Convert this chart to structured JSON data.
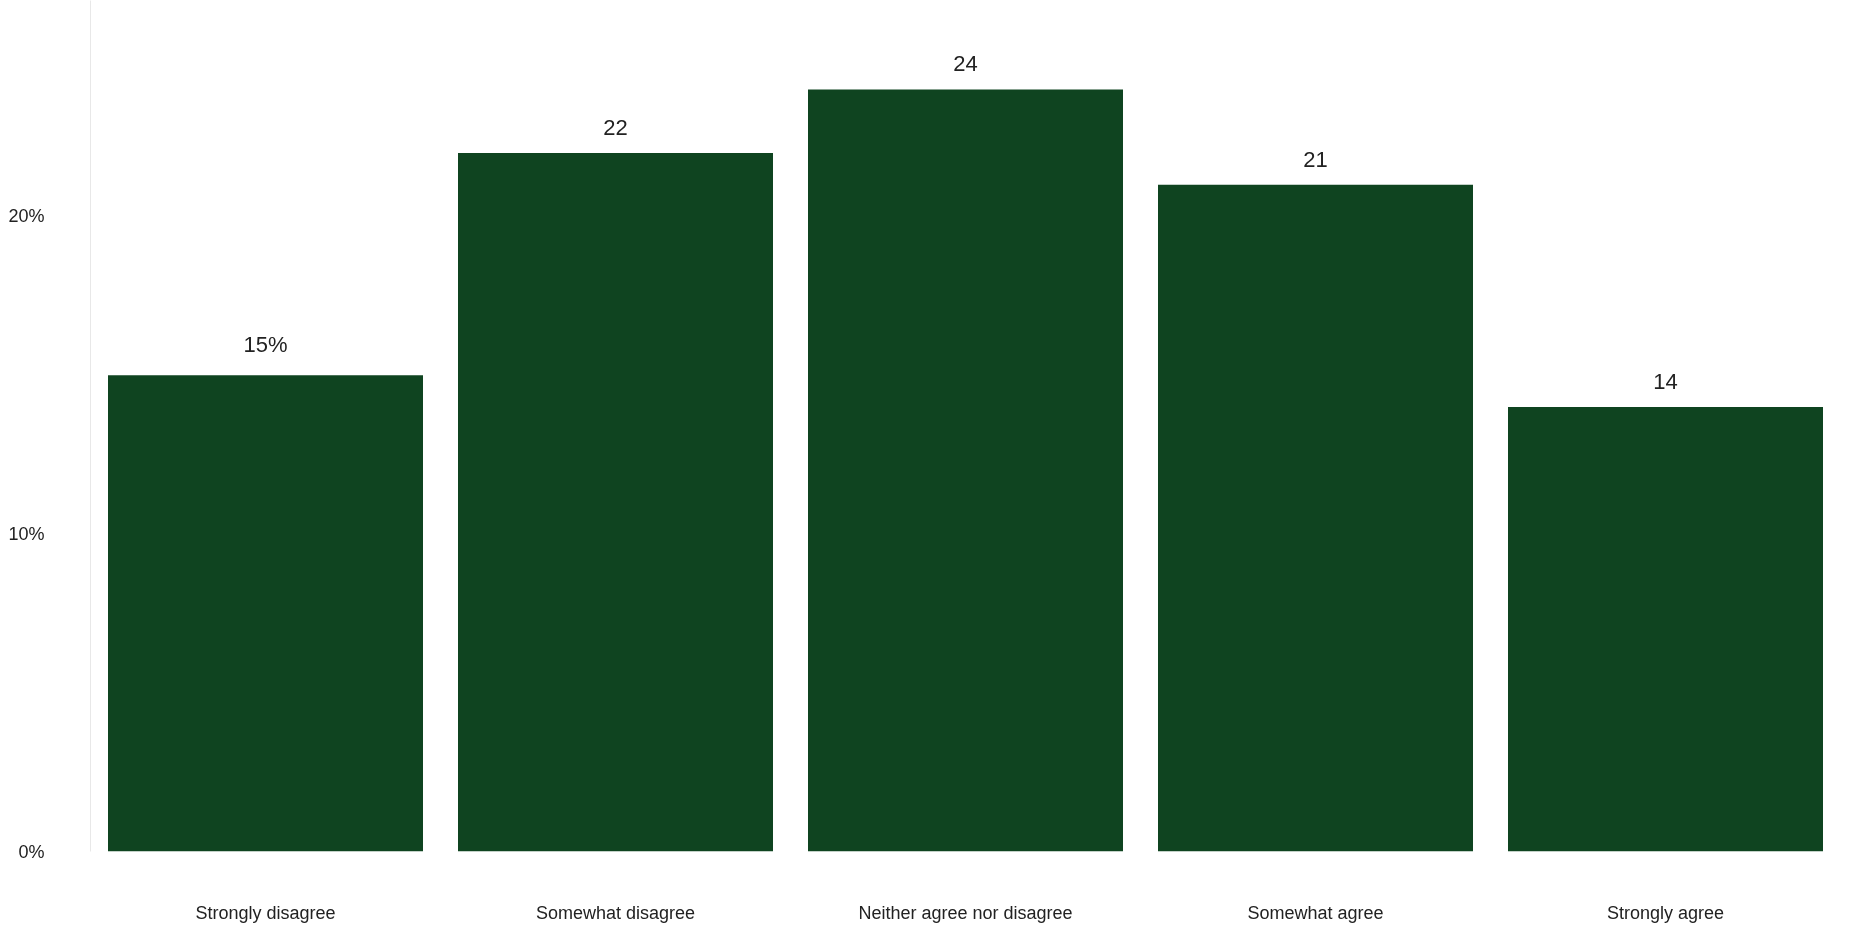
{
  "chart_data": {
    "type": "bar",
    "categories": [
      "Strongly disagree",
      "Somewhat disagree",
      "Neither agree nor disagree",
      "Somewhat agree",
      "Strongly agree"
    ],
    "values": [
      15,
      22,
      24,
      21,
      14
    ],
    "value_labels": [
      "15%",
      "22",
      "24",
      "21",
      "14"
    ],
    "color": "#0f4420",
    "ylim": [
      0,
      26.8
    ],
    "yticks": [
      {
        "value": 0,
        "label": "0%"
      },
      {
        "value": 10,
        "label": "10%"
      },
      {
        "value": 20,
        "label": "20%"
      }
    ],
    "grid": false
  }
}
